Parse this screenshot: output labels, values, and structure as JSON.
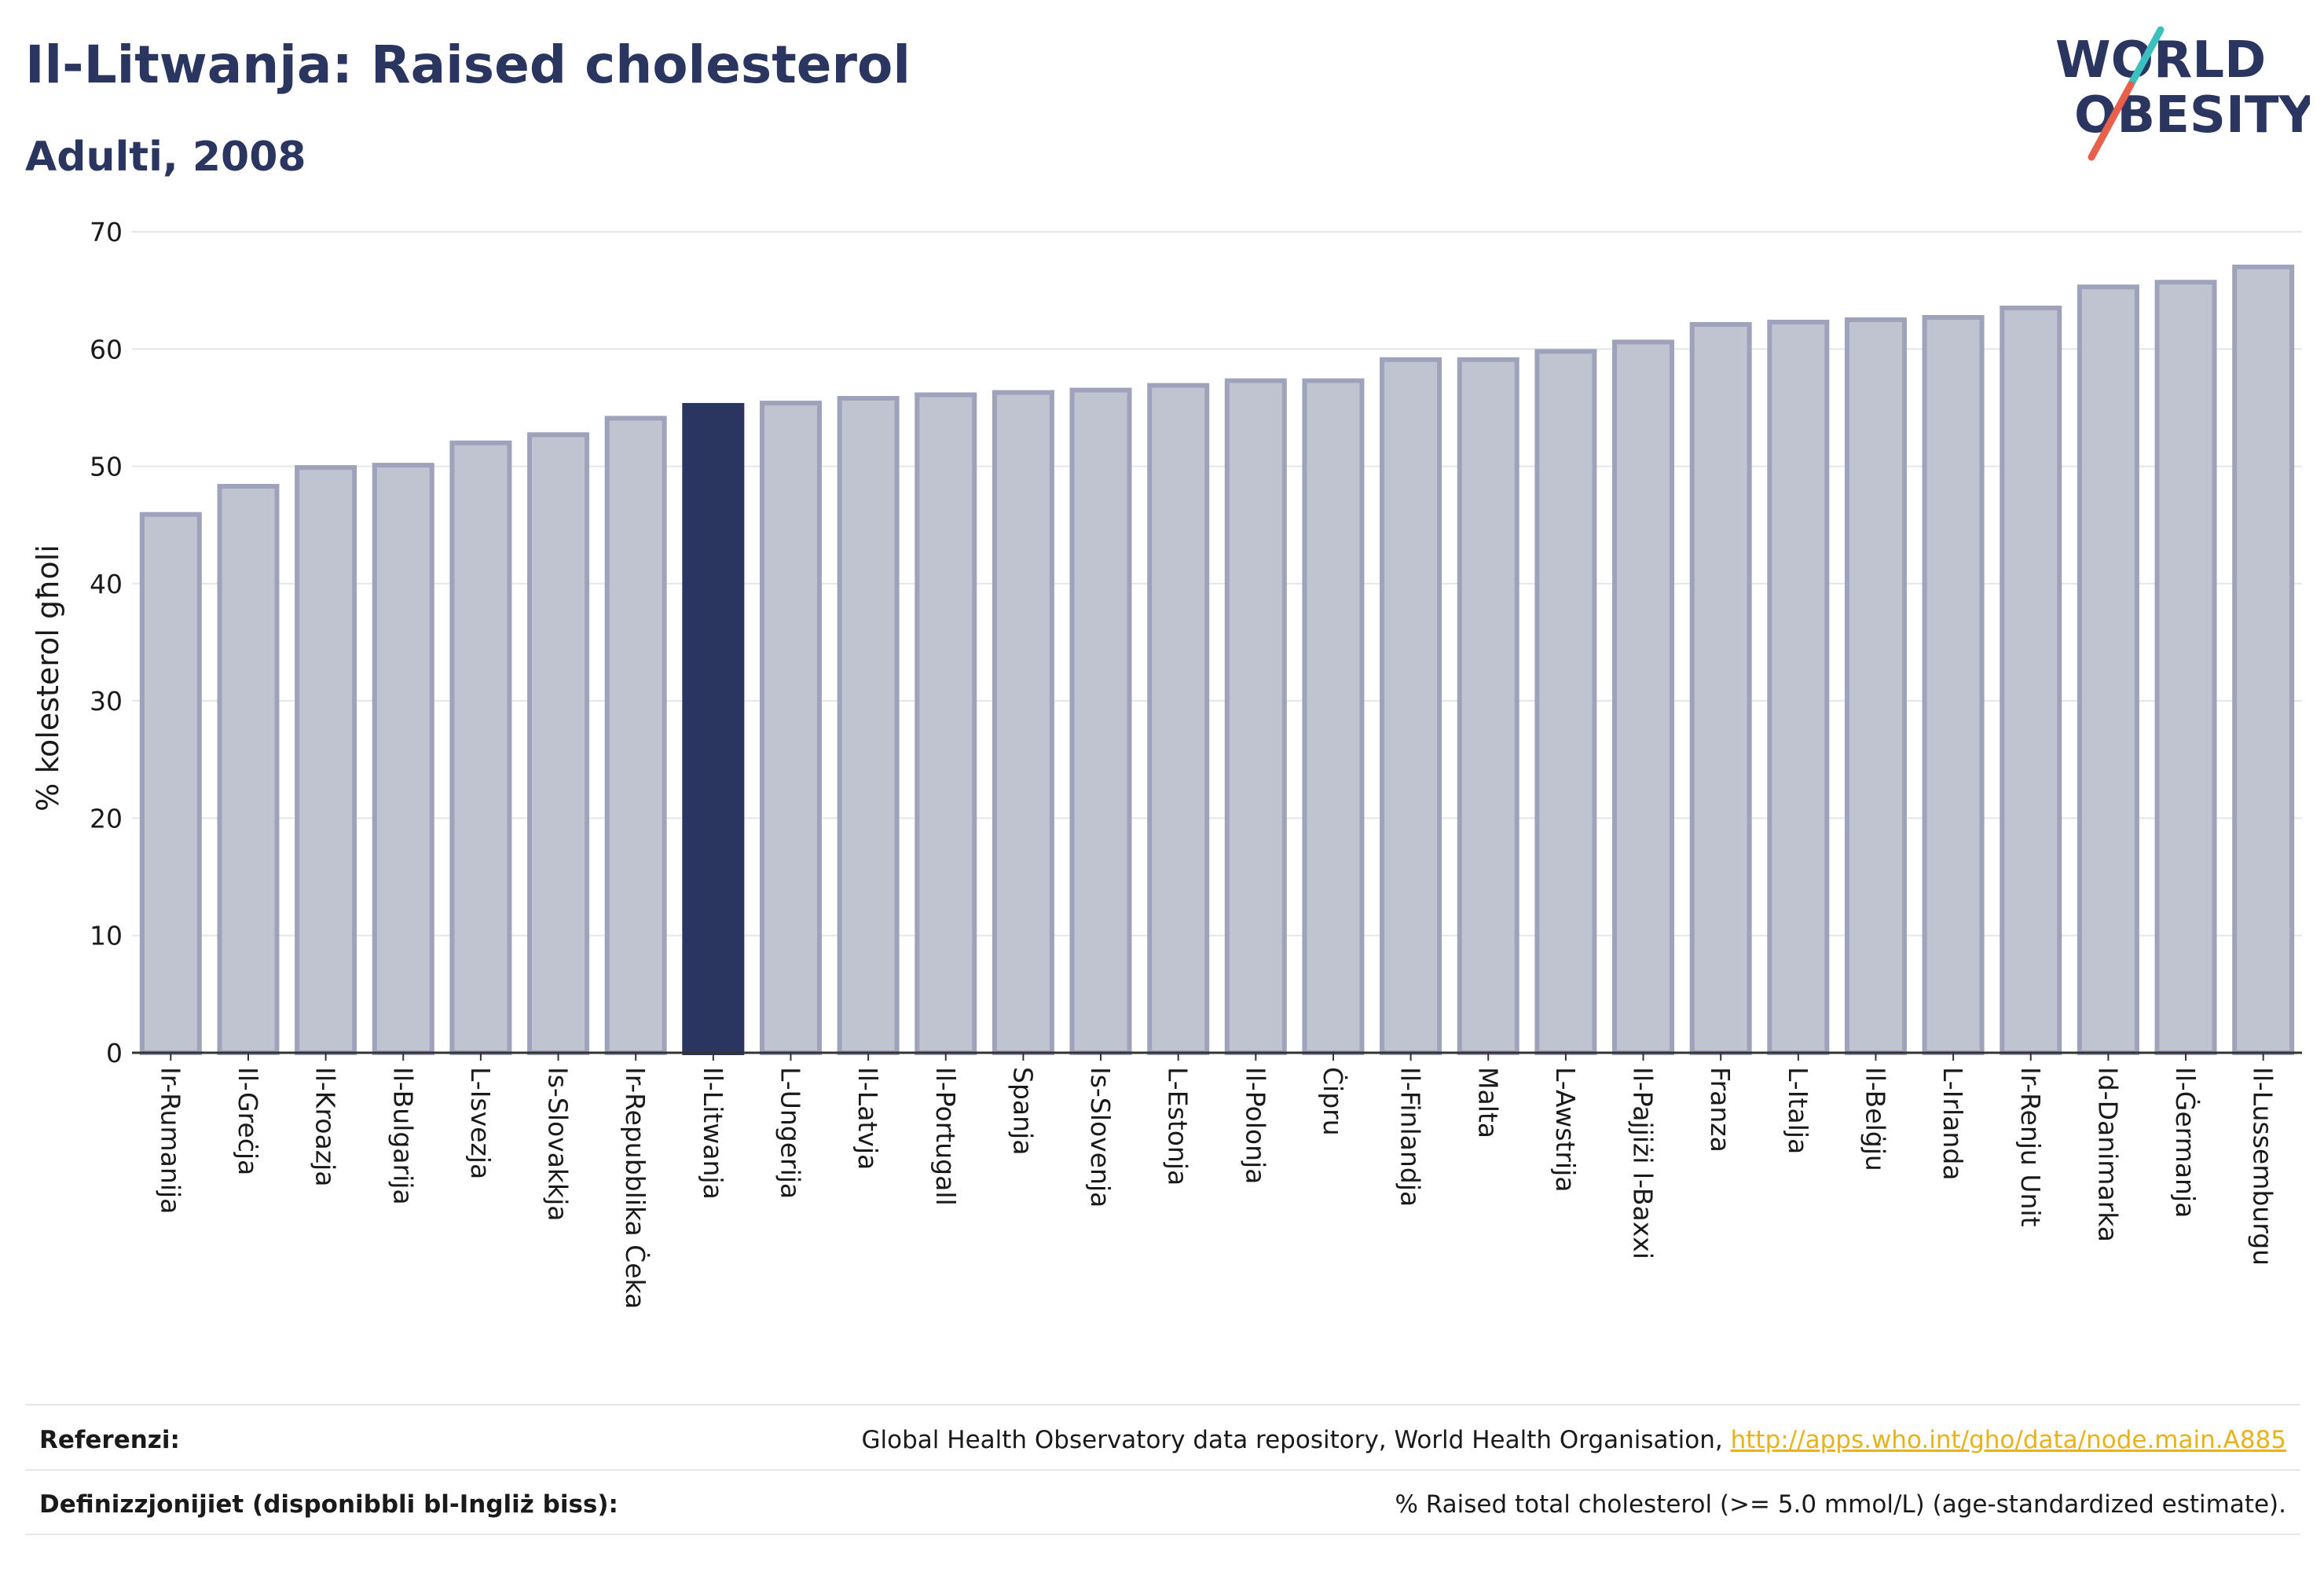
{
  "header": {
    "title": "Il-Litwanja: Raised cholesterol",
    "subtitle": "Adulti, 2008"
  },
  "logo": {
    "line1": "WORLD",
    "line2": "OBESITY",
    "accent_teal": "#3bbfbf",
    "accent_red": "#e8604c",
    "color": "#2a3560"
  },
  "colors": {
    "bar_fill": "#c0c3d0",
    "bar_stroke": "#9ea3bb",
    "highlight_fill": "#2a3560",
    "grid": "#e6e6e6",
    "axis": "#333333"
  },
  "chart_data": {
    "type": "bar",
    "ylabel": "% kolesterol għoli",
    "ylim": [
      0,
      70
    ],
    "yticks": [
      0,
      10,
      20,
      30,
      40,
      50,
      60,
      70
    ],
    "grid": true,
    "highlight": "Il-Litwanja",
    "categories": [
      "Ir-Rumanija",
      "Il-Greċja",
      "Il-Kroazja",
      "Il-Bulgarija",
      "L-Isvezja",
      "Is-Slovakkja",
      "Ir-Repubblika Ċeka",
      "Il-Litwanja",
      "L-Ungerija",
      "Il-Latvja",
      "Il-Portugall",
      "Spanja",
      "Is-Slovenja",
      "L-Estonja",
      "Il-Polonja",
      "Ċipru",
      "Il-Finlandja",
      "Malta",
      "L-Awstrija",
      "Il-Pajjiżi l-Baxxi",
      "Franza",
      "L-Italja",
      "Il-Belġju",
      "L-Irlanda",
      "Ir-Renju Unit",
      "Id-Danimarka",
      "Il-Ġermanja",
      "Il-Lussemburgu"
    ],
    "values": [
      45.9,
      48.3,
      49.9,
      50.1,
      52.0,
      52.7,
      54.1,
      55.2,
      55.4,
      55.8,
      56.1,
      56.3,
      56.5,
      56.9,
      57.3,
      57.3,
      59.1,
      59.1,
      59.8,
      60.6,
      62.1,
      62.3,
      62.5,
      62.7,
      63.5,
      65.3,
      65.7,
      67.0
    ]
  },
  "footer": {
    "references_label": "Referenzi:",
    "references_text": "Global Health Observatory data repository, World Health Organisation, ",
    "references_link": "http://apps.who.int/gho/data/node.main.A885",
    "definitions_label": "Definizzjonijiet (disponibbli bl-Ingliż biss):",
    "definitions_text": "% Raised total cholesterol (>= 5.0 mmol/L) (age-standardized estimate)."
  }
}
